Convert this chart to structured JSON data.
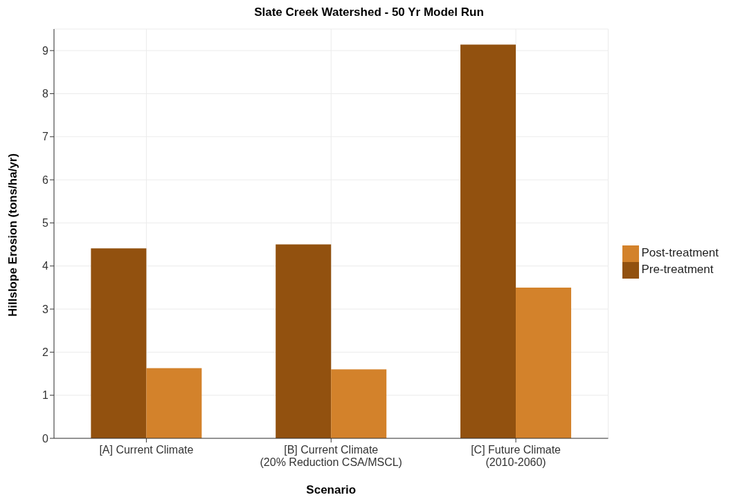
{
  "chart_data": {
    "type": "bar",
    "title": "Slate Creek Watershed - 50 Yr Model Run",
    "xlabel": "Scenario",
    "ylabel": "Hillslope Erosion (tons/ha/yr)",
    "categories": [
      "[A] Current Climate",
      "[B] Current Climate\n(20% Reduction CSA/MSCL)",
      "[C] Future Climate\n(2010-2060)"
    ],
    "series": [
      {
        "name": "Pre-treatment",
        "color": "#92510f",
        "values": [
          4.41,
          4.5,
          9.14
        ]
      },
      {
        "name": "Post-treatment",
        "color": "#d3822b",
        "values": [
          1.63,
          1.6,
          3.5
        ]
      }
    ],
    "ylim": [
      0,
      9.5
    ],
    "yticks": [
      0,
      1,
      2,
      3,
      4,
      5,
      6,
      7,
      8,
      9
    ],
    "grid": true,
    "legend": "right"
  }
}
